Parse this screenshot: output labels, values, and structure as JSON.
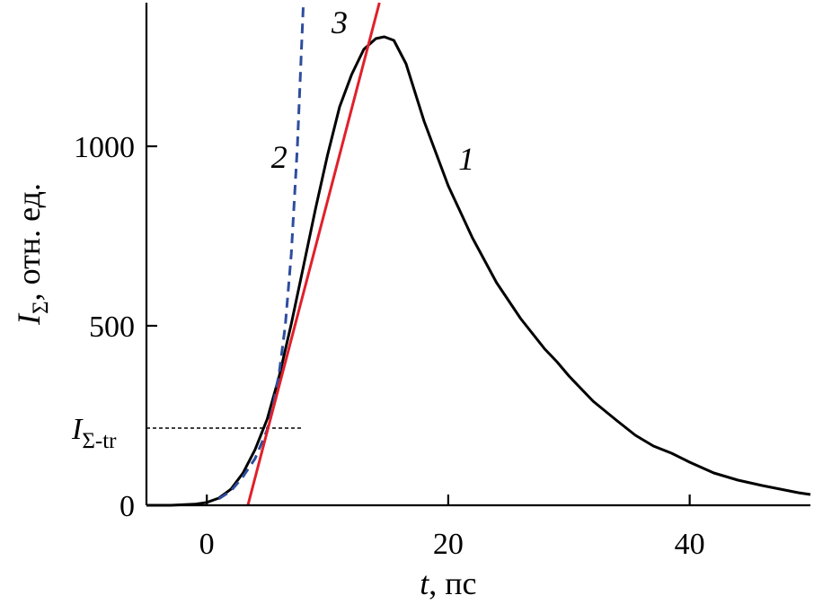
{
  "chart_data": {
    "type": "line",
    "xlabel": {
      "var": "t",
      "unit": ", пс"
    },
    "ylabel": {
      "var": "I",
      "sub": "Σ",
      "unit": ", отн. ед."
    },
    "xlim": [
      -5,
      50
    ],
    "ylim": [
      0,
      1400
    ],
    "xticks": [
      0,
      20,
      40
    ],
    "yticks": [
      0,
      500,
      1000
    ],
    "threshold": {
      "label_var": "I",
      "label_sub": "Σ-tr",
      "y": 215,
      "x_end": 8
    },
    "series": [
      {
        "name": "1",
        "color": "#000000",
        "style": "solid",
        "x": [
          -5,
          -3,
          -1,
          0,
          1,
          2,
          3,
          4,
          5,
          6,
          7,
          8,
          9,
          10,
          11,
          12,
          13,
          14,
          14.7,
          15.5,
          16.5,
          18,
          20,
          22,
          24,
          26,
          28,
          29,
          30,
          32,
          34,
          35.5,
          37,
          38.5,
          40,
          42,
          44,
          46,
          47.5,
          49,
          50
        ],
        "y": [
          0,
          0,
          3,
          8,
          20,
          45,
          90,
          155,
          240,
          360,
          505,
          665,
          825,
          975,
          1110,
          1200,
          1270,
          1300,
          1305,
          1295,
          1230,
          1070,
          890,
          745,
          620,
          520,
          435,
          400,
          360,
          290,
          235,
          195,
          165,
          145,
          120,
          90,
          70,
          55,
          45,
          35,
          30
        ]
      },
      {
        "name": "2",
        "color": "#2e4d9e",
        "style": "dashed",
        "x": [
          1,
          2,
          3,
          4,
          5,
          5.5,
          6,
          6.5,
          7,
          7.5,
          8
        ],
        "y": [
          18,
          40,
          80,
          130,
          210,
          280,
          370,
          500,
          700,
          1000,
          1400
        ]
      },
      {
        "name": "3",
        "color": "#e0202b",
        "style": "solid",
        "x": [
          3.4,
          14.3
        ],
        "y": [
          0,
          1400
        ]
      }
    ],
    "curve_labels": [
      {
        "text": "1",
        "x": 21.5,
        "y": 935
      },
      {
        "text": "2",
        "x": 6,
        "y": 940
      },
      {
        "text": "3",
        "x": 11,
        "y": 1315
      }
    ]
  }
}
